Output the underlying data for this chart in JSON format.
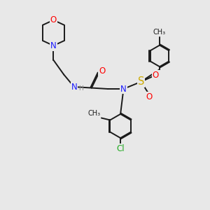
{
  "bg_color": "#e8e8e8",
  "bond_color": "#1a1a1a",
  "bond_width": 1.4,
  "atom_colors": {
    "O": "#ff0000",
    "N": "#1a1aff",
    "S": "#ccaa00",
    "Cl": "#22aa22",
    "C": "#1a1a1a",
    "H": "#888888"
  },
  "font_size": 8.5
}
